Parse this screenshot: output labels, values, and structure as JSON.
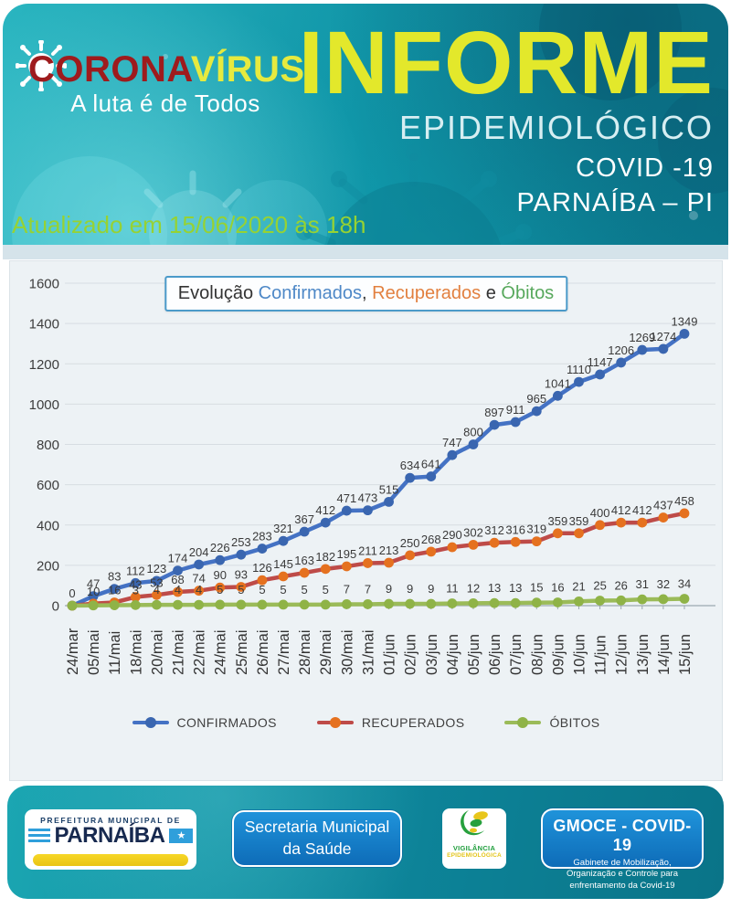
{
  "header": {
    "logo": {
      "brand_part1": "CORONA",
      "brand_part2": "VÍRUS",
      "tagline": "A luta é de Todos"
    },
    "title": "INFORME",
    "subtitle1": "EPIDEMIOLÓGICO",
    "subtitle2": "COVID -19",
    "subtitle3": "PARNAÍBA – PI",
    "updated": "Atualizado em 15/06/2020 às 18h"
  },
  "chart_data": {
    "type": "line",
    "title": "Evolução Confirmados, Recuperados e Óbitos",
    "title_parts": [
      {
        "text": "Evolução ",
        "color": "#333333"
      },
      {
        "text": "Confirmados",
        "color": "#4e88c7"
      },
      {
        "text": ", ",
        "color": "#333333"
      },
      {
        "text": "Recuperados",
        "color": "#e2803f"
      },
      {
        "text": " e ",
        "color": "#333333"
      },
      {
        "text": "Óbitos",
        "color": "#57a85c"
      }
    ],
    "categories": [
      "24/mar",
      "05/mai",
      "11/mai",
      "18/mai",
      "20/mai",
      "21/mai",
      "22/mai",
      "24/mai",
      "25/mai",
      "26/mai",
      "27/mai",
      "28/mai",
      "29/mai",
      "30/mai",
      "31/mai",
      "01/jun",
      "02/jun",
      "03/jun",
      "04/jun",
      "05/jun",
      "06/jun",
      "07/jun",
      "08/jun",
      "09/jun",
      "10/jun",
      "11/jun",
      "12/jun",
      "13/jun",
      "14/jun",
      "15/jun"
    ],
    "series": [
      {
        "name": "CONFIRMADOS",
        "color": "#4472C4",
        "marker_color": "#3A66B0",
        "values": [
          0,
          47,
          83,
          112,
          123,
          174,
          204,
          226,
          253,
          283,
          321,
          367,
          412,
          471,
          473,
          515,
          634,
          641,
          747,
          800,
          897,
          911,
          965,
          1041,
          1110,
          1147,
          1206,
          1269,
          1274,
          1349
        ],
        "labels": [
          "0",
          "47",
          "83",
          "112",
          "123",
          "174",
          "204",
          "226",
          "253",
          "283",
          "321",
          "367",
          "412",
          "471",
          "473",
          "515",
          "634",
          "641",
          "747",
          "800",
          "897",
          "911",
          "965",
          "1041",
          "1110",
          "1147",
          "1206",
          "1269",
          "1274",
          "1349"
        ]
      },
      {
        "name": "RECUPERADOS",
        "color": "#BE4B48",
        "marker_color": "#E5711F",
        "values": [
          0,
          10,
          16,
          43,
          53,
          68,
          74,
          90,
          93,
          126,
          145,
          163,
          182,
          195,
          211,
          213,
          250,
          268,
          290,
          302,
          312,
          316,
          319,
          359,
          359,
          400,
          412,
          412,
          437,
          458
        ],
        "labels": [
          "",
          "10",
          "16",
          "43",
          "53",
          "68",
          "74",
          "90",
          "93",
          "126",
          "145",
          "163",
          "182",
          "195",
          "211",
          "213",
          "250",
          "268",
          "290",
          "302",
          "312",
          "316",
          "319",
          "359",
          "359",
          "400",
          "412",
          "412",
          "437",
          "458"
        ]
      },
      {
        "name": "ÓBITOS",
        "color": "#9BBB59",
        "marker_color": "#8FB347",
        "values": [
          0,
          1,
          2,
          3,
          4,
          4,
          4,
          5,
          5,
          5,
          5,
          5,
          5,
          7,
          7,
          9,
          9,
          9,
          11,
          12,
          13,
          13,
          15,
          16,
          21,
          25,
          26,
          31,
          32,
          34
        ],
        "labels": [
          "",
          "",
          "",
          "3",
          "4",
          "4",
          "4",
          "5",
          "5",
          "5",
          "5",
          "5",
          "5",
          "7",
          "7",
          "9",
          "9",
          "9",
          "11",
          "12",
          "13",
          "13",
          "15",
          "16",
          "21",
          "25",
          "26",
          "31",
          "32",
          "34"
        ]
      }
    ],
    "ylim": [
      0,
      1600
    ],
    "yticks": [
      0,
      200,
      400,
      600,
      800,
      1000,
      1200,
      1400,
      1600
    ],
    "xlabel": "",
    "ylabel": "",
    "grid": true,
    "legend_position": "bottom"
  },
  "footer": {
    "prefeitura": {
      "line1": "PREFEITURA MUNICIPAL DE",
      "line2": "PARNAÍBA",
      "star": "★"
    },
    "secretaria": {
      "line1": "Secretaria Municipal",
      "line2": "da Saúde"
    },
    "vigilancia": {
      "line1": "VIGILÂNCIA",
      "line2": "EPIDEMIOLÓGICA"
    },
    "gmoce": {
      "title": "GMOCE - COVID-19",
      "subtitle": "Gabinete de Mobilização, Organização e Controle para enfrentamento da Covid-19"
    }
  },
  "colors": {
    "header_teal": "#1297a9",
    "header_teal_dark": "#0a7a8f",
    "title_yellow": "#e3e82b",
    "brand_red": "#9e1b1d",
    "brand_yellow": "#e6ea3f",
    "updated_green": "#96d233",
    "series_blue": "#4472C4",
    "series_red_line": "#BE4B48",
    "series_orange_marker": "#E5711F",
    "series_green": "#9BBB59",
    "footer_box_blue": "#1f93da",
    "card_background": "#edf2f5"
  }
}
